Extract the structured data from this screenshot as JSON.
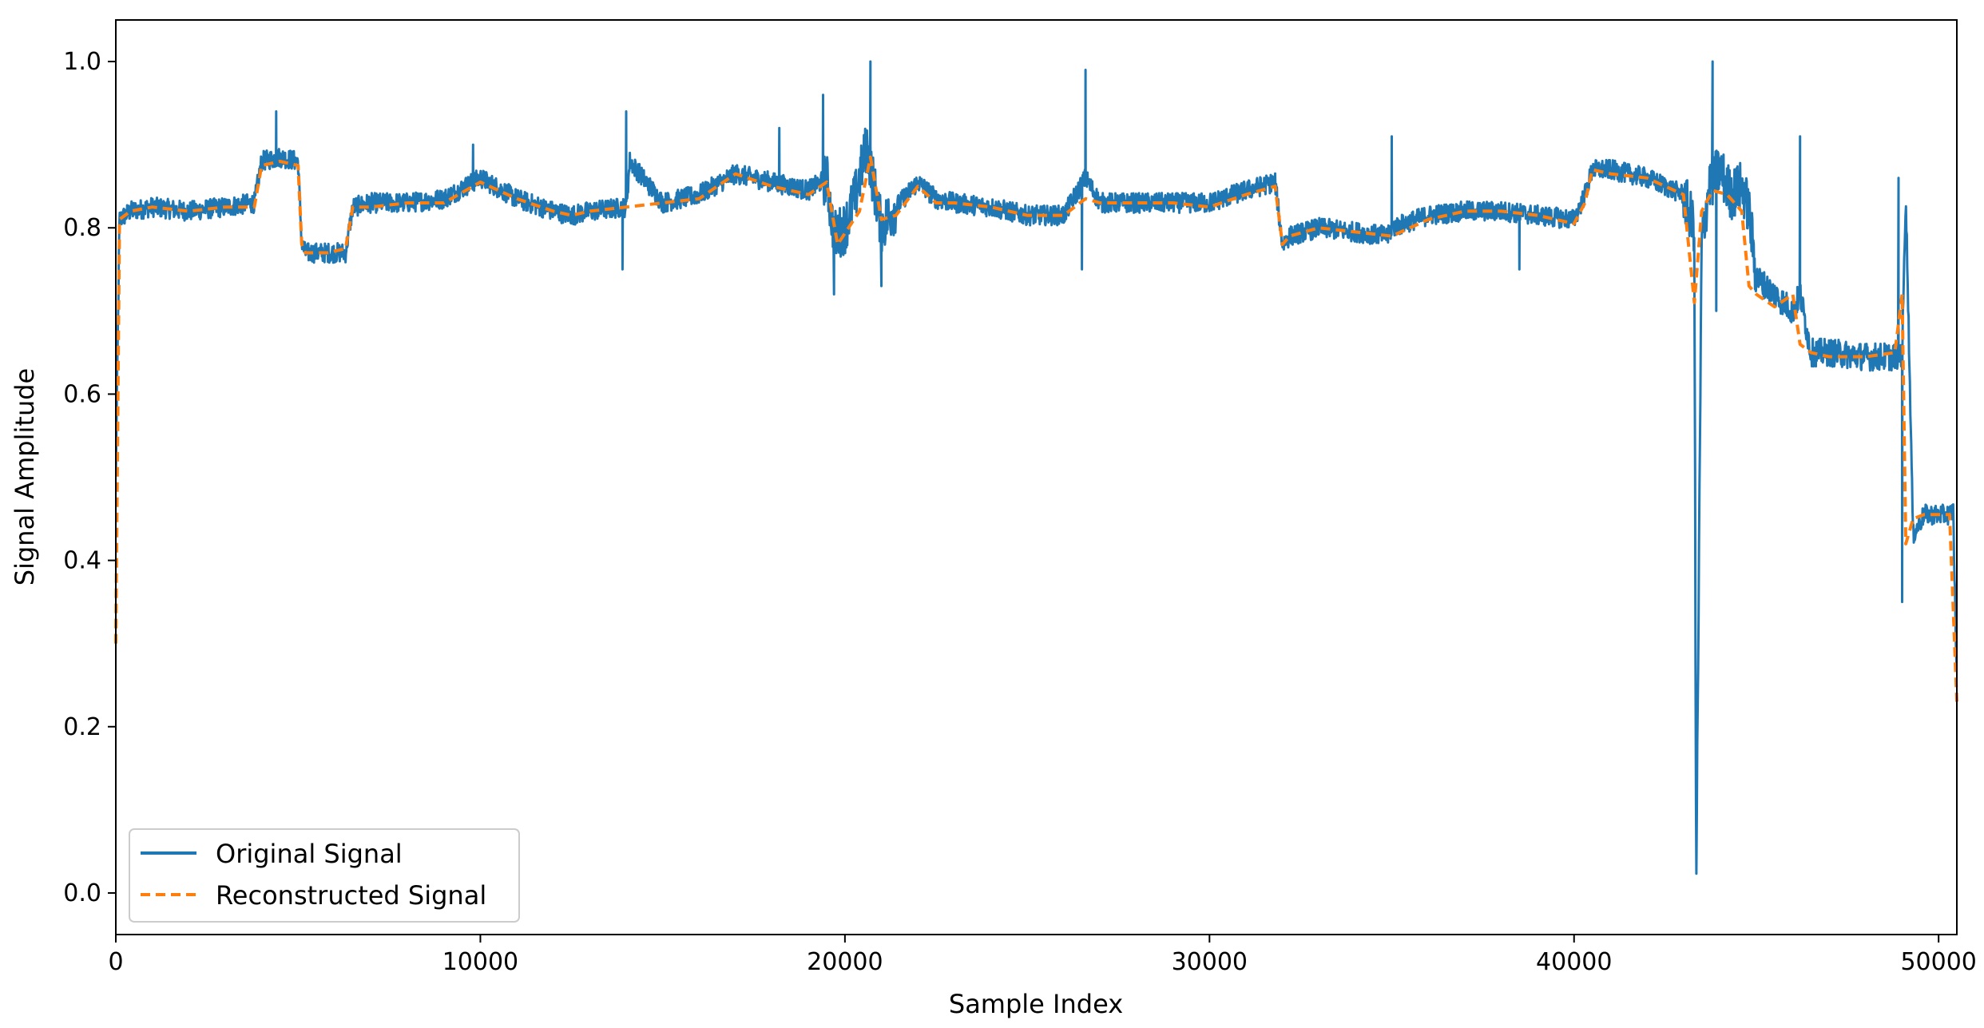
{
  "chart_data": {
    "type": "line",
    "title": "",
    "xlabel": "Sample Index",
    "ylabel": "Signal Amplitude",
    "xlim": [
      0,
      50500
    ],
    "ylim": [
      -0.05,
      1.05
    ],
    "x_ticks": [
      0,
      10000,
      20000,
      30000,
      40000,
      50000
    ],
    "y_ticks": [
      0.0,
      0.2,
      0.4,
      0.6,
      0.8,
      1.0
    ],
    "x_tick_labels": [
      "0",
      "10000",
      "20000",
      "30000",
      "40000",
      "50000"
    ],
    "y_tick_labels": [
      "0.0",
      "0.2",
      "0.4",
      "0.6",
      "0.8",
      "1.0"
    ],
    "grid": false,
    "legend": {
      "position": "lower-left",
      "entries": [
        "Original Signal",
        "Reconstructed Signal"
      ]
    },
    "colors": {
      "original": "#1f77b4",
      "reconstructed": "#ff7f0e"
    },
    "series": [
      {
        "name": "Original Signal",
        "style": "solid",
        "noise_band": 0.012,
        "x": [
          0,
          100,
          400,
          1000,
          2000,
          3000,
          3800,
          4000,
          4500,
          5000,
          5100,
          5200,
          5800,
          6300,
          6500,
          7000,
          8000,
          9000,
          10000,
          11000,
          12000,
          12500,
          13000,
          14000,
          14100,
          15000,
          16000,
          17000,
          18000,
          19000,
          19500,
          19700,
          20000,
          20300,
          20600,
          20800,
          21000,
          21300,
          22000,
          22500,
          23000,
          24000,
          25000,
          26000,
          26600,
          27000,
          28000,
          29000,
          30000,
          31000,
          31800,
          32000,
          32200,
          33000,
          34000,
          34900,
          35000,
          36000,
          37000,
          38000,
          39000,
          40000,
          40300,
          40500,
          41000,
          42000,
          43000,
          43300,
          43350,
          43500,
          43700,
          44000,
          44300,
          44600,
          44800,
          45000,
          45500,
          46000,
          46200,
          46500,
          47000,
          48000,
          48800,
          49000,
          49100,
          49300,
          49600,
          50000,
          50300,
          50400,
          50500
        ],
        "y": [
          0.5,
          0.81,
          0.82,
          0.825,
          0.82,
          0.825,
          0.83,
          0.88,
          0.885,
          0.88,
          0.78,
          0.77,
          0.77,
          0.77,
          0.825,
          0.83,
          0.83,
          0.835,
          0.86,
          0.835,
          0.82,
          0.815,
          0.82,
          0.825,
          0.88,
          0.83,
          0.84,
          0.865,
          0.855,
          0.845,
          0.86,
          0.79,
          0.8,
          0.84,
          0.9,
          0.85,
          0.8,
          0.82,
          0.855,
          0.835,
          0.83,
          0.825,
          0.815,
          0.815,
          0.86,
          0.83,
          0.83,
          0.83,
          0.83,
          0.845,
          0.855,
          0.78,
          0.79,
          0.8,
          0.795,
          0.79,
          0.8,
          0.815,
          0.82,
          0.82,
          0.815,
          0.81,
          0.84,
          0.87,
          0.87,
          0.86,
          0.84,
          0.8,
          0.0,
          0.78,
          0.85,
          0.87,
          0.84,
          0.85,
          0.82,
          0.74,
          0.72,
          0.7,
          0.72,
          0.65,
          0.65,
          0.645,
          0.645,
          0.65,
          0.84,
          0.43,
          0.455,
          0.455,
          0.455,
          0.46,
          0.25
        ]
      },
      {
        "name": "Reconstructed Signal",
        "style": "dashed",
        "x": [
          0,
          100,
          400,
          1000,
          2000,
          3000,
          3800,
          4000,
          4500,
          5000,
          5100,
          5200,
          5800,
          6300,
          6500,
          7000,
          8000,
          9000,
          10000,
          11000,
          12000,
          12500,
          13000,
          14000,
          15000,
          16000,
          17000,
          18000,
          19000,
          19500,
          19800,
          20100,
          20400,
          20700,
          21000,
          21400,
          22000,
          22500,
          23000,
          24000,
          25000,
          26000,
          26600,
          27000,
          28000,
          29000,
          30000,
          31000,
          31800,
          32000,
          32200,
          33000,
          34000,
          35000,
          36000,
          37000,
          38000,
          39000,
          40000,
          40300,
          40500,
          41000,
          42000,
          43000,
          43300,
          43500,
          43800,
          44200,
          44600,
          44800,
          45000,
          45500,
          46000,
          46200,
          46500,
          47000,
          48000,
          48800,
          49000,
          49100,
          49300,
          49600,
          50000,
          50300,
          50500
        ],
        "y": [
          0.3,
          0.81,
          0.82,
          0.825,
          0.82,
          0.825,
          0.825,
          0.875,
          0.88,
          0.875,
          0.78,
          0.77,
          0.77,
          0.775,
          0.825,
          0.825,
          0.83,
          0.83,
          0.855,
          0.835,
          0.82,
          0.815,
          0.82,
          0.825,
          0.83,
          0.835,
          0.865,
          0.85,
          0.84,
          0.855,
          0.78,
          0.8,
          0.82,
          0.885,
          0.81,
          0.815,
          0.85,
          0.83,
          0.83,
          0.825,
          0.815,
          0.815,
          0.835,
          0.83,
          0.83,
          0.83,
          0.825,
          0.84,
          0.85,
          0.78,
          0.79,
          0.8,
          0.795,
          0.79,
          0.81,
          0.82,
          0.82,
          0.815,
          0.805,
          0.83,
          0.87,
          0.865,
          0.86,
          0.84,
          0.71,
          0.82,
          0.845,
          0.84,
          0.82,
          0.73,
          0.72,
          0.705,
          0.72,
          0.66,
          0.65,
          0.645,
          0.645,
          0.65,
          0.72,
          0.42,
          0.45,
          0.455,
          0.455,
          0.455,
          0.23
        ]
      }
    ],
    "spikes": [
      {
        "x": 4400,
        "y": 0.94
      },
      {
        "x": 9800,
        "y": 0.9
      },
      {
        "x": 13900,
        "y": 0.75
      },
      {
        "x": 14000,
        "y": 0.94
      },
      {
        "x": 18200,
        "y": 0.92
      },
      {
        "x": 19400,
        "y": 0.96
      },
      {
        "x": 19700,
        "y": 0.72
      },
      {
        "x": 20700,
        "y": 1.0
      },
      {
        "x": 21000,
        "y": 0.73
      },
      {
        "x": 26600,
        "y": 0.99
      },
      {
        "x": 26500,
        "y": 0.75
      },
      {
        "x": 35000,
        "y": 0.91
      },
      {
        "x": 38500,
        "y": 0.75
      },
      {
        "x": 43800,
        "y": 1.0
      },
      {
        "x": 43900,
        "y": 0.7
      },
      {
        "x": 46200,
        "y": 0.91
      },
      {
        "x": 48900,
        "y": 0.86
      },
      {
        "x": 49000,
        "y": 0.35
      }
    ]
  }
}
